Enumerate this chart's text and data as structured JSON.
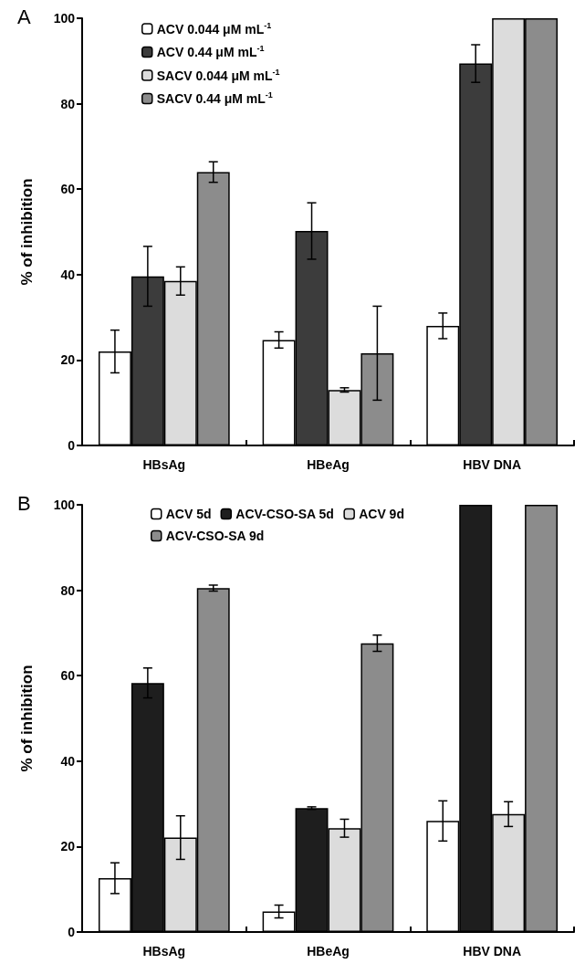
{
  "chart_data": [
    {
      "type": "bar",
      "title": "A",
      "ylabel": "% of inhibition",
      "categories": [
        "HBsAg",
        "HBeAg",
        "HBV DNA"
      ],
      "ylim": [
        0,
        100
      ],
      "yticks": [
        0,
        20,
        40,
        60,
        80,
        100
      ],
      "grid": false,
      "legend": "top left",
      "series": [
        {
          "name": "ACV 0.044 μM mL$^{-1}$",
          "color": "#ffffff",
          "values": [
            22.0,
            24.7,
            28.0
          ],
          "errors": [
            5.0,
            1.9,
            3.0
          ]
        },
        {
          "name": "ACV 0.44 μM mL$^{-1}$",
          "color": "#3c3c3c",
          "values": [
            39.6,
            50.2,
            89.4
          ],
          "errors": [
            7.0,
            6.6,
            4.4
          ]
        },
        {
          "name": "SACV 0.044 μM mL$^{-1}$",
          "color": "#dcdcdc",
          "values": [
            38.5,
            13.0,
            100
          ],
          "errors": [
            3.3,
            0.5,
            null
          ]
        },
        {
          "name": "SACV 0.44 μM mL$^{-1}$",
          "color": "#8c8c8c",
          "values": [
            64.0,
            21.6,
            100
          ],
          "errors": [
            2.4,
            11.0,
            null
          ]
        }
      ]
    },
    {
      "type": "bar",
      "title": "B",
      "ylabel": "% of inhibition",
      "categories": [
        "HBsAg",
        "HBeAg",
        "HBV DNA"
      ],
      "ylim": [
        0,
        100
      ],
      "yticks": [
        0,
        20,
        40,
        60,
        80,
        100
      ],
      "grid": false,
      "legend": "top",
      "series": [
        {
          "name": "ACV 5d",
          "color": "#ffffff",
          "values": [
            12.6,
            4.8,
            26.0
          ],
          "errors": [
            3.6,
            1.5,
            4.7
          ]
        },
        {
          "name": "ACV-CSO-SA 5d",
          "color": "#1e1e1e",
          "values": [
            58.3,
            29.0,
            100
          ],
          "errors": [
            3.5,
            0.3,
            null
          ]
        },
        {
          "name": "ACV 9d",
          "color": "#dcdcdc",
          "values": [
            22.1,
            24.3,
            27.6
          ],
          "errors": [
            5.1,
            2.1,
            2.9
          ]
        },
        {
          "name": "ACV-CSO-SA 9d",
          "color": "#8c8c8c",
          "values": [
            80.5,
            67.6,
            100
          ],
          "errors": [
            0.7,
            1.9,
            null
          ]
        }
      ]
    }
  ]
}
